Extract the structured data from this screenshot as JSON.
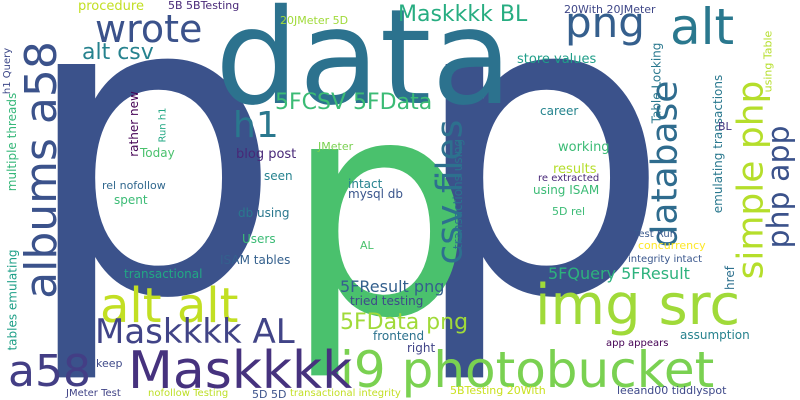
{
  "words": [
    {
      "text": "p",
      "color": "#3b528b"
    },
    {
      "text": "p",
      "color": "#3b528b"
    },
    {
      "text": "p",
      "color": "#4ac16d"
    },
    {
      "text": "data",
      "color": "#2c728e"
    },
    {
      "text": "img src",
      "color": "#a0da39"
    },
    {
      "text": "i9 photobucket",
      "color": "#7ad151"
    },
    {
      "text": "Maskkkk",
      "color": "#46327e"
    },
    {
      "text": "a58",
      "color": "#433e85"
    },
    {
      "text": "albums a58",
      "color": "#3b528b"
    },
    {
      "text": "alt alt",
      "color": "#c2df23"
    },
    {
      "text": "Maskkkk AL",
      "color": "#414487"
    },
    {
      "text": "alt",
      "color": "#2a788e"
    },
    {
      "text": "png",
      "color": "#355f8d"
    },
    {
      "text": "wrote",
      "color": "#3b528b"
    },
    {
      "text": "csv files",
      "color": "#2d708e"
    },
    {
      "text": "database",
      "color": "#2f6c8e"
    },
    {
      "text": "php app",
      "color": "#3b528b"
    },
    {
      "text": "simple php",
      "color": "#b5de2b"
    },
    {
      "text": "Maskkkk BL",
      "color": "#27ad81"
    },
    {
      "text": "alt csv",
      "color": "#26828e"
    },
    {
      "text": "h1",
      "color": "#2a788e"
    },
    {
      "text": "5FCSV 5FData",
      "color": "#3bbb75"
    },
    {
      "text": "5FData png",
      "color": "#a0da39"
    },
    {
      "text": "5FResult png",
      "color": "#34608d"
    },
    {
      "text": "5FQuery 5FResult",
      "color": "#2db27d"
    },
    {
      "text": "procedure",
      "color": "#c2df23"
    },
    {
      "text": "5B 5BTesting",
      "color": "#482878"
    },
    {
      "text": "20JMeter 5D",
      "color": "#a0da39"
    },
    {
      "text": "20With 20JMeter",
      "color": "#3f4788"
    },
    {
      "text": "store values",
      "color": "#1f9e89"
    },
    {
      "text": "career",
      "color": "#25848e"
    },
    {
      "text": "working",
      "color": "#3bbb75"
    },
    {
      "text": "results",
      "color": "#b5de2b"
    },
    {
      "text": "blog post",
      "color": "#482878"
    },
    {
      "text": "Today",
      "color": "#4ac16d"
    },
    {
      "text": "seen",
      "color": "#26828e"
    },
    {
      "text": "rel nofollow",
      "color": "#31688e"
    },
    {
      "text": "spent",
      "color": "#3bbb75"
    },
    {
      "text": "intact",
      "color": "#26828e"
    },
    {
      "text": "mysql db",
      "color": "#39558c"
    },
    {
      "text": "using ISAM",
      "color": "#3bbb75"
    },
    {
      "text": "re extracted",
      "color": "#482878"
    },
    {
      "text": "db using",
      "color": "#2a788e"
    },
    {
      "text": "Users",
      "color": "#3bbb75"
    },
    {
      "text": "ISAM tables",
      "color": "#34608d"
    },
    {
      "text": "transactional",
      "color": "#22a884"
    },
    {
      "text": "AL",
      "color": "#4ac16d"
    },
    {
      "text": "JMeter",
      "color": "#7ad151"
    },
    {
      "text": "5D rel",
      "color": "#3bbb75"
    },
    {
      "text": "concurrency",
      "color": "#fde725"
    },
    {
      "text": "Test Run",
      "color": "#38588c"
    },
    {
      "text": "integrity intact",
      "color": "#39568c"
    },
    {
      "text": "tried testing",
      "color": "#3e4989"
    },
    {
      "text": "frontend",
      "color": "#2c728e"
    },
    {
      "text": "right",
      "color": "#414487"
    },
    {
      "text": "keep",
      "color": "#3e4989"
    },
    {
      "text": "assumption",
      "color": "#26828e"
    },
    {
      "text": "app appears",
      "color": "#440154"
    },
    {
      "text": "5BTesting 20With",
      "color": "#cae11f"
    },
    {
      "text": "leeand00 tiddlyspot",
      "color": "#3e4989"
    },
    {
      "text": "JMeter Test",
      "color": "#414487"
    },
    {
      "text": "nofollow Testing",
      "color": "#bddf26"
    },
    {
      "text": "5D 5D",
      "color": "#3b528b"
    },
    {
      "text": "transactional integrity",
      "color": "#c2df23"
    },
    {
      "text": "multiple threads",
      "color": "#35b779"
    },
    {
      "text": "tables emulating",
      "color": "#1fa088"
    },
    {
      "text": "h1 Query",
      "color": "#3e4989"
    },
    {
      "text": "rather new",
      "color": "#440154"
    },
    {
      "text": "Run h1",
      "color": "#22a884"
    },
    {
      "text": "transactions using",
      "color": "#2c728e"
    },
    {
      "text": "Table Locking",
      "color": "#2a788e"
    },
    {
      "text": "emulating transactions",
      "color": "#2a788e"
    },
    {
      "text": "BL",
      "color": "#453781"
    },
    {
      "text": "href",
      "color": "#2d708e"
    },
    {
      "text": "using Table",
      "color": "#b5de2b"
    }
  ]
}
